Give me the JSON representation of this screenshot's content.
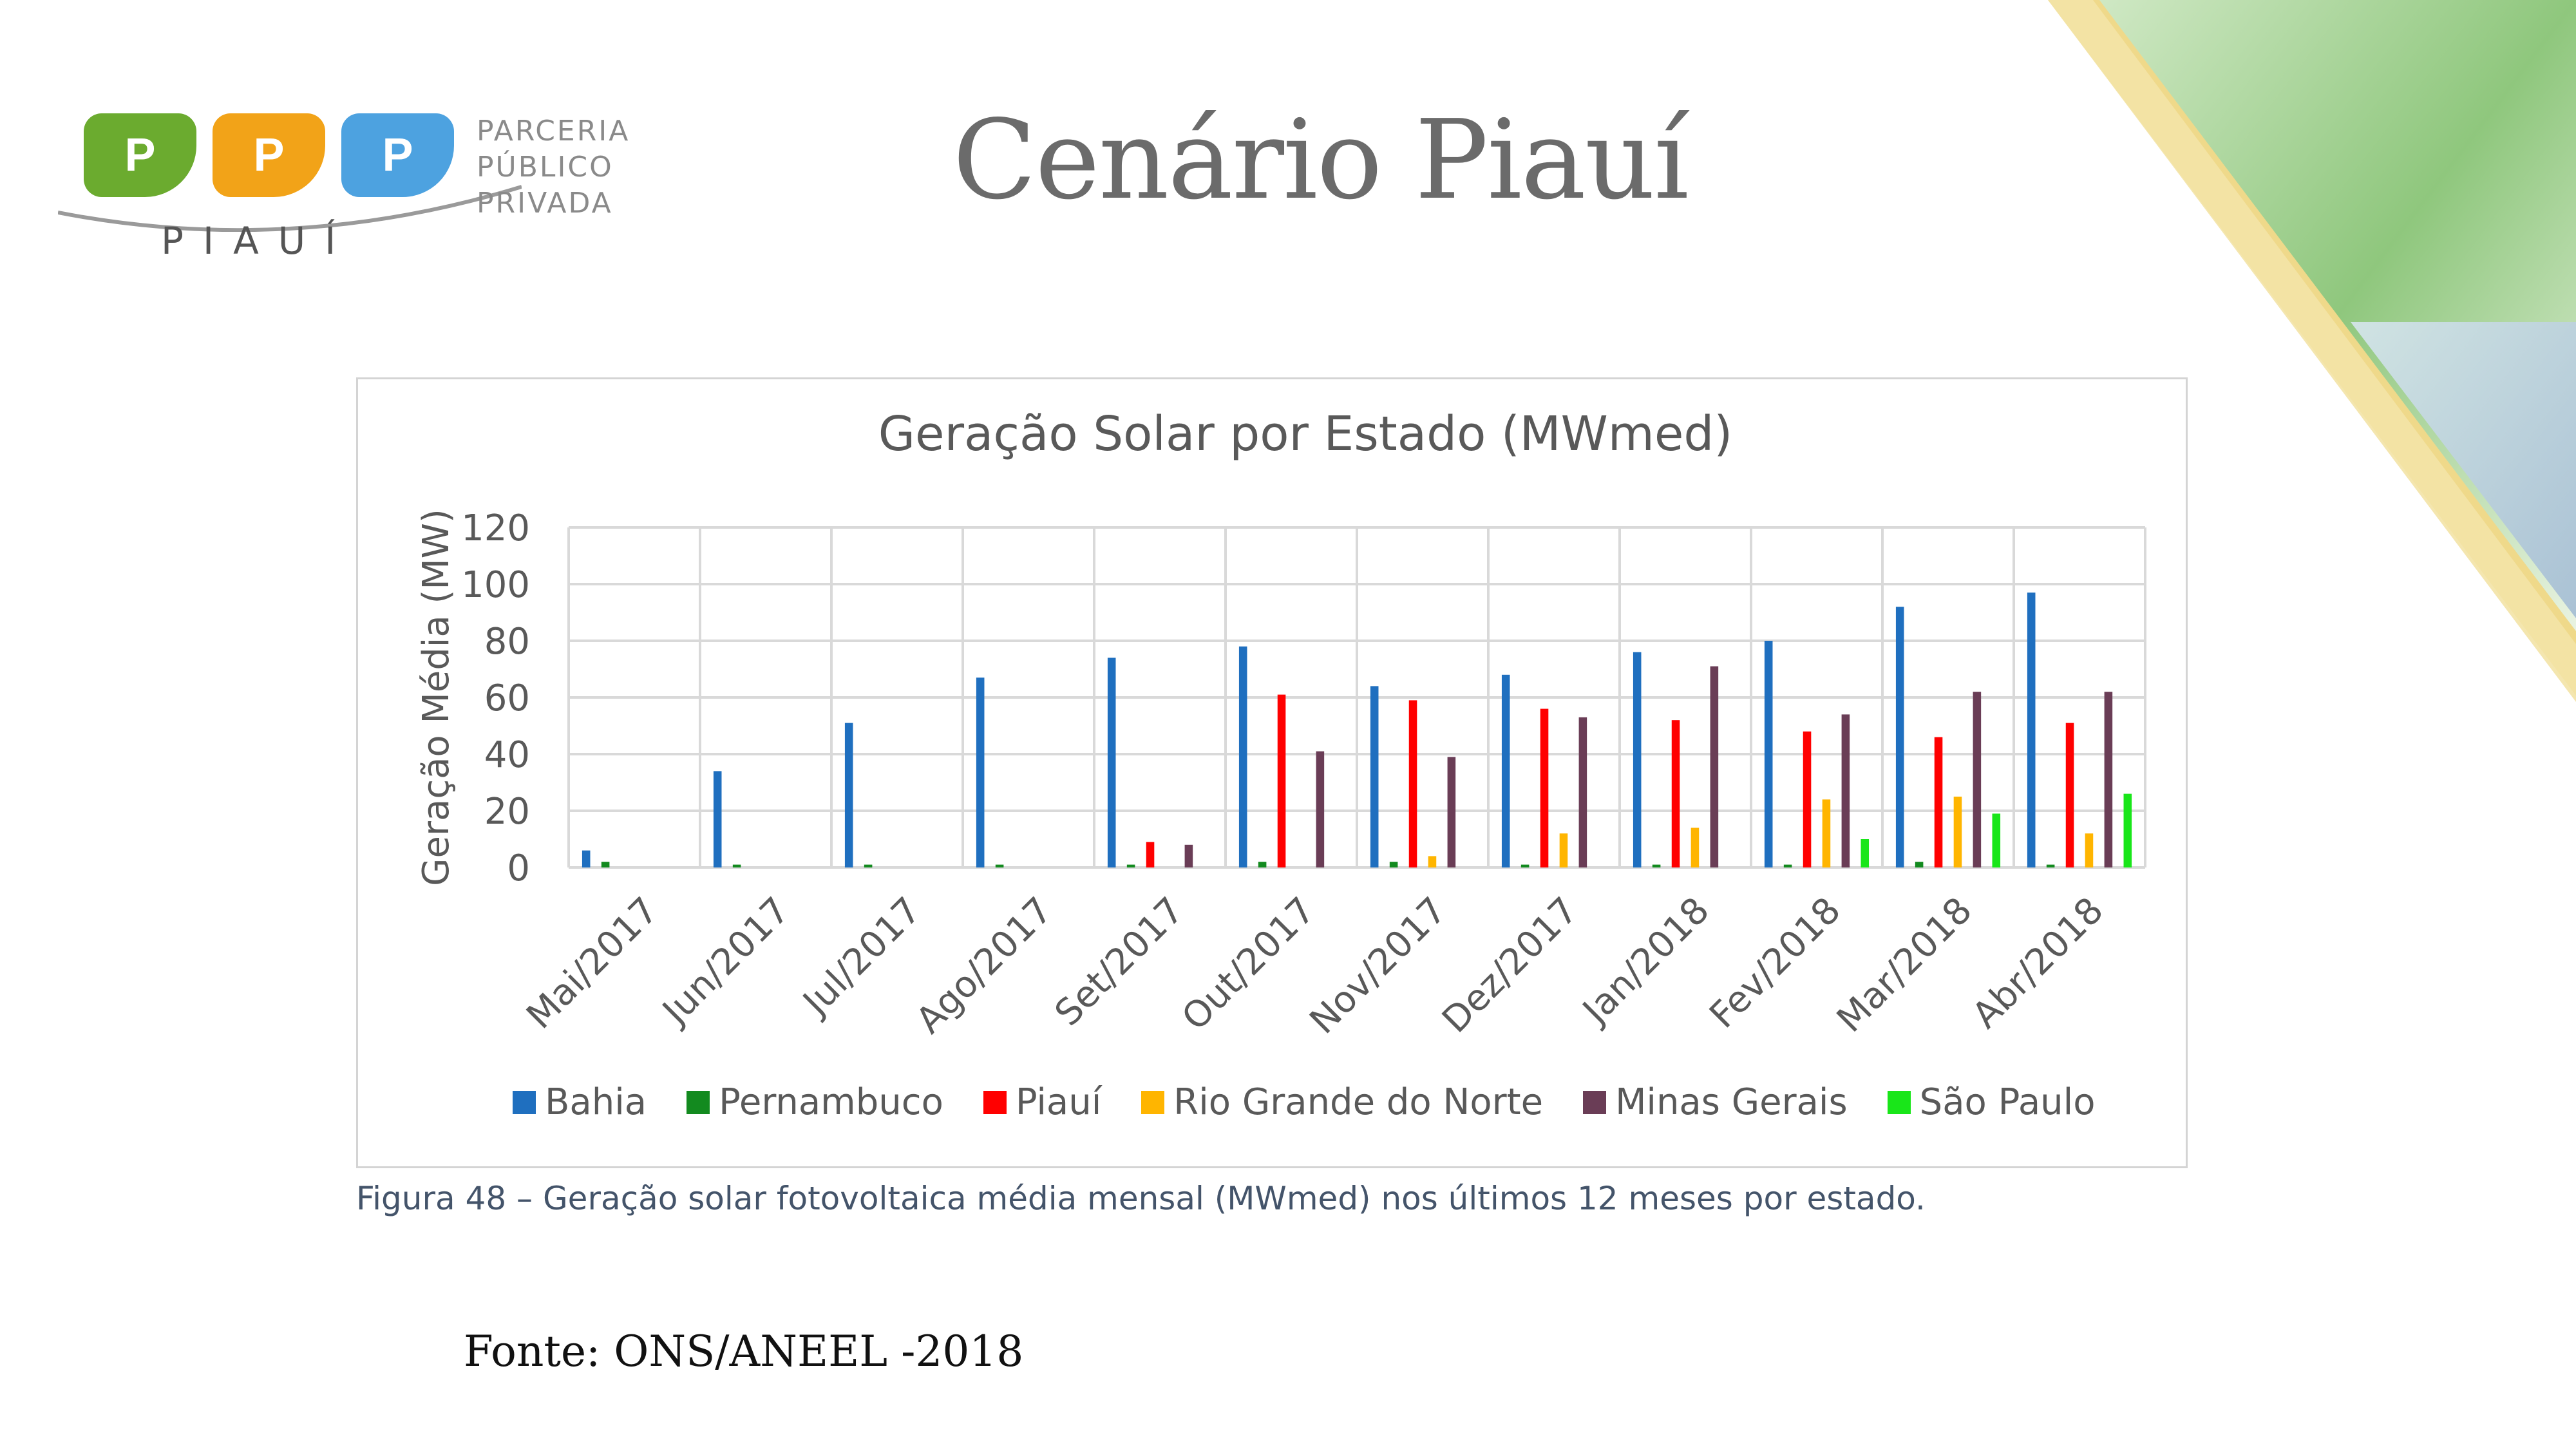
{
  "slide": {
    "title": "Cenário Piauí",
    "source": "Fonte: ONS/ANEEL -2018"
  },
  "logo": {
    "tiles": [
      "P",
      "P",
      "P"
    ],
    "name": "PIAUÍ",
    "lines": [
      "PARCERIA",
      "PÚBLICO",
      "PRIVADA"
    ],
    "colors": [
      "#6bab2f",
      "#f2a318",
      "#4da2e0"
    ]
  },
  "caption": "Figura 48 – Geração solar fotovoltaica média mensal (MWmed) nos últimos 12 meses por estado.",
  "chart_data": {
    "type": "bar",
    "title": "Geração Solar por Estado (MWmed)",
    "xlabel": "",
    "ylabel": "Geração Média (MW)",
    "ylim": [
      0,
      120
    ],
    "yticks": [
      0,
      20,
      40,
      60,
      80,
      100,
      120
    ],
    "grid": true,
    "legend_position": "bottom",
    "categories": [
      "Mai/2017",
      "Jun/2017",
      "Jul/2017",
      "Ago/2017",
      "Set/2017",
      "Out/2017",
      "Nov/2017",
      "Dez/2017",
      "Jan/2018",
      "Fev/2018",
      "Mar/2018",
      "Abr/2018"
    ],
    "series": [
      {
        "name": "Bahia",
        "color": "#1f6fbf",
        "values": [
          6,
          34,
          51,
          67,
          74,
          78,
          64,
          68,
          76,
          80,
          92,
          97
        ]
      },
      {
        "name": "Pernambuco",
        "color": "#138a1f",
        "values": [
          2,
          1,
          1,
          1,
          1,
          2,
          2,
          1,
          1,
          1,
          2,
          1
        ]
      },
      {
        "name": "Piauí",
        "color": "#ff0000",
        "values": [
          0,
          0,
          0,
          0,
          9,
          61,
          59,
          56,
          52,
          48,
          46,
          51
        ]
      },
      {
        "name": "Rio Grande do Norte",
        "color": "#ffb500",
        "values": [
          0,
          0,
          0,
          0,
          0,
          0,
          4,
          12,
          14,
          24,
          25,
          12
        ]
      },
      {
        "name": "Minas Gerais",
        "color": "#6a3d56",
        "values": [
          0,
          0,
          0,
          0,
          8,
          41,
          39,
          53,
          71,
          54,
          62,
          62
        ]
      },
      {
        "name": "São Paulo",
        "color": "#19e619",
        "values": [
          0,
          0,
          0,
          0,
          0,
          0,
          0,
          0,
          0,
          10,
          19,
          26
        ]
      }
    ]
  }
}
